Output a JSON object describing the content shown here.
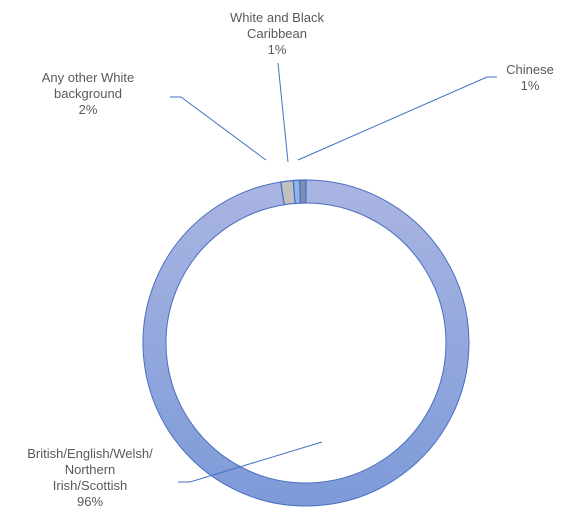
{
  "chart_data": {
    "type": "pie",
    "variant": "doughnut",
    "title": "",
    "slices": [
      {
        "lines": [
          "British/English/Welsh/",
          "Northern",
          "Irish/Scottish",
          "96%"
        ],
        "value": 96,
        "color": "#8fa6dc"
      },
      {
        "lines": [
          "Any other White",
          "background",
          "2%"
        ],
        "value": 2,
        "color": "#c0c0c0"
      },
      {
        "lines": [
          "White and Black",
          "Caribbean",
          "1%"
        ],
        "value": 1,
        "color": "#8fb4e6"
      },
      {
        "lines": [
          "Chinese",
          "1%"
        ],
        "value": 1,
        "color": "#7b8fb0"
      }
    ],
    "legend": "none",
    "leader_line_color": "#4472c4"
  }
}
